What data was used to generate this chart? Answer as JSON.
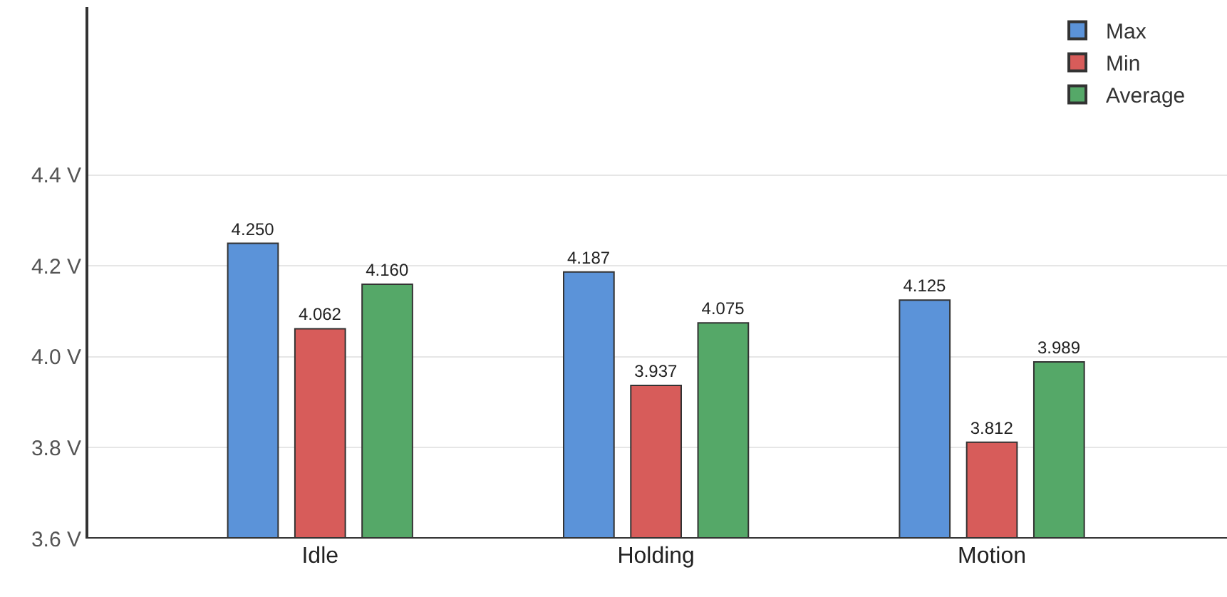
{
  "chart_data": {
    "type": "bar",
    "categories": [
      "Idle",
      "Holding",
      "Motion"
    ],
    "series": [
      {
        "name": "Max",
        "color": "#5b93d9",
        "values": [
          4.25,
          4.187,
          4.125
        ],
        "value_labels": [
          "4.250",
          "4.187",
          "4.125"
        ]
      },
      {
        "name": "Min",
        "color": "#d75c5a",
        "values": [
          4.062,
          3.937,
          3.812
        ],
        "value_labels": [
          "4.062",
          "3.937",
          "3.812"
        ]
      },
      {
        "name": "Average",
        "color": "#55a868",
        "values": [
          4.16,
          4.075,
          3.989
        ],
        "value_labels": [
          "4.160",
          "4.075",
          "3.989"
        ]
      }
    ],
    "ylim": [
      3.6,
      4.77
    ],
    "yticks": [
      {
        "value": 3.6,
        "label": "3.6 V"
      },
      {
        "value": 3.8,
        "label": "3.8 V"
      },
      {
        "value": 4.0,
        "label": "4.0 V"
      },
      {
        "value": 4.2,
        "label": "4.2 V"
      },
      {
        "value": 4.4,
        "label": "4.4 V"
      }
    ],
    "grid": "y",
    "legend": "top right"
  }
}
